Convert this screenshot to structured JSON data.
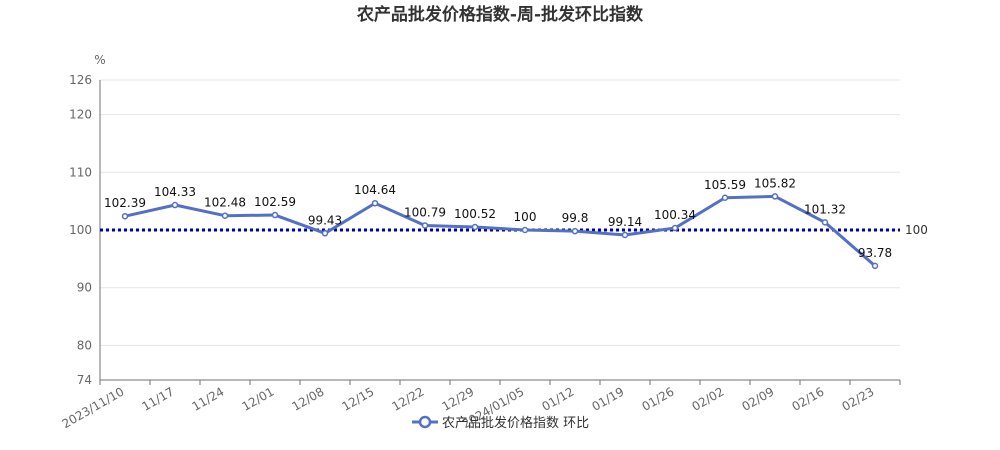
{
  "chart_data": {
    "type": "line",
    "title": "农产品批发价格指数-周-批发环比指数",
    "y_unit": "%",
    "ylim": [
      74,
      126
    ],
    "yticks": [
      74,
      80,
      90,
      100,
      110,
      120,
      126
    ],
    "x": [
      "2023/11/10",
      "11/17",
      "11/24",
      "12/01",
      "12/08",
      "12/15",
      "12/22",
      "12/29",
      "2024/01/05",
      "01/12",
      "01/19",
      "01/26",
      "02/02",
      "02/09",
      "02/16",
      "02/23"
    ],
    "series": [
      {
        "name": "农产品批发价格指数 环比",
        "values": [
          102.39,
          104.33,
          102.48,
          102.59,
          99.43,
          104.64,
          100.79,
          100.52,
          100,
          99.8,
          99.14,
          100.34,
          105.59,
          105.82,
          101.32,
          93.78
        ],
        "labels": [
          "102.39",
          "104.33",
          "102.48",
          "102.59",
          "99.43",
          "104.64",
          "100.79",
          "100.52",
          "100",
          "99.8",
          "99.14",
          "100.34",
          "105.59",
          "105.82",
          "101.32",
          "93.78"
        ],
        "color": "#5470c6"
      }
    ],
    "reference_line": {
      "value": 100,
      "label": "100",
      "color": "#0000aa"
    },
    "grid": true,
    "legend_position": "bottom-center"
  }
}
